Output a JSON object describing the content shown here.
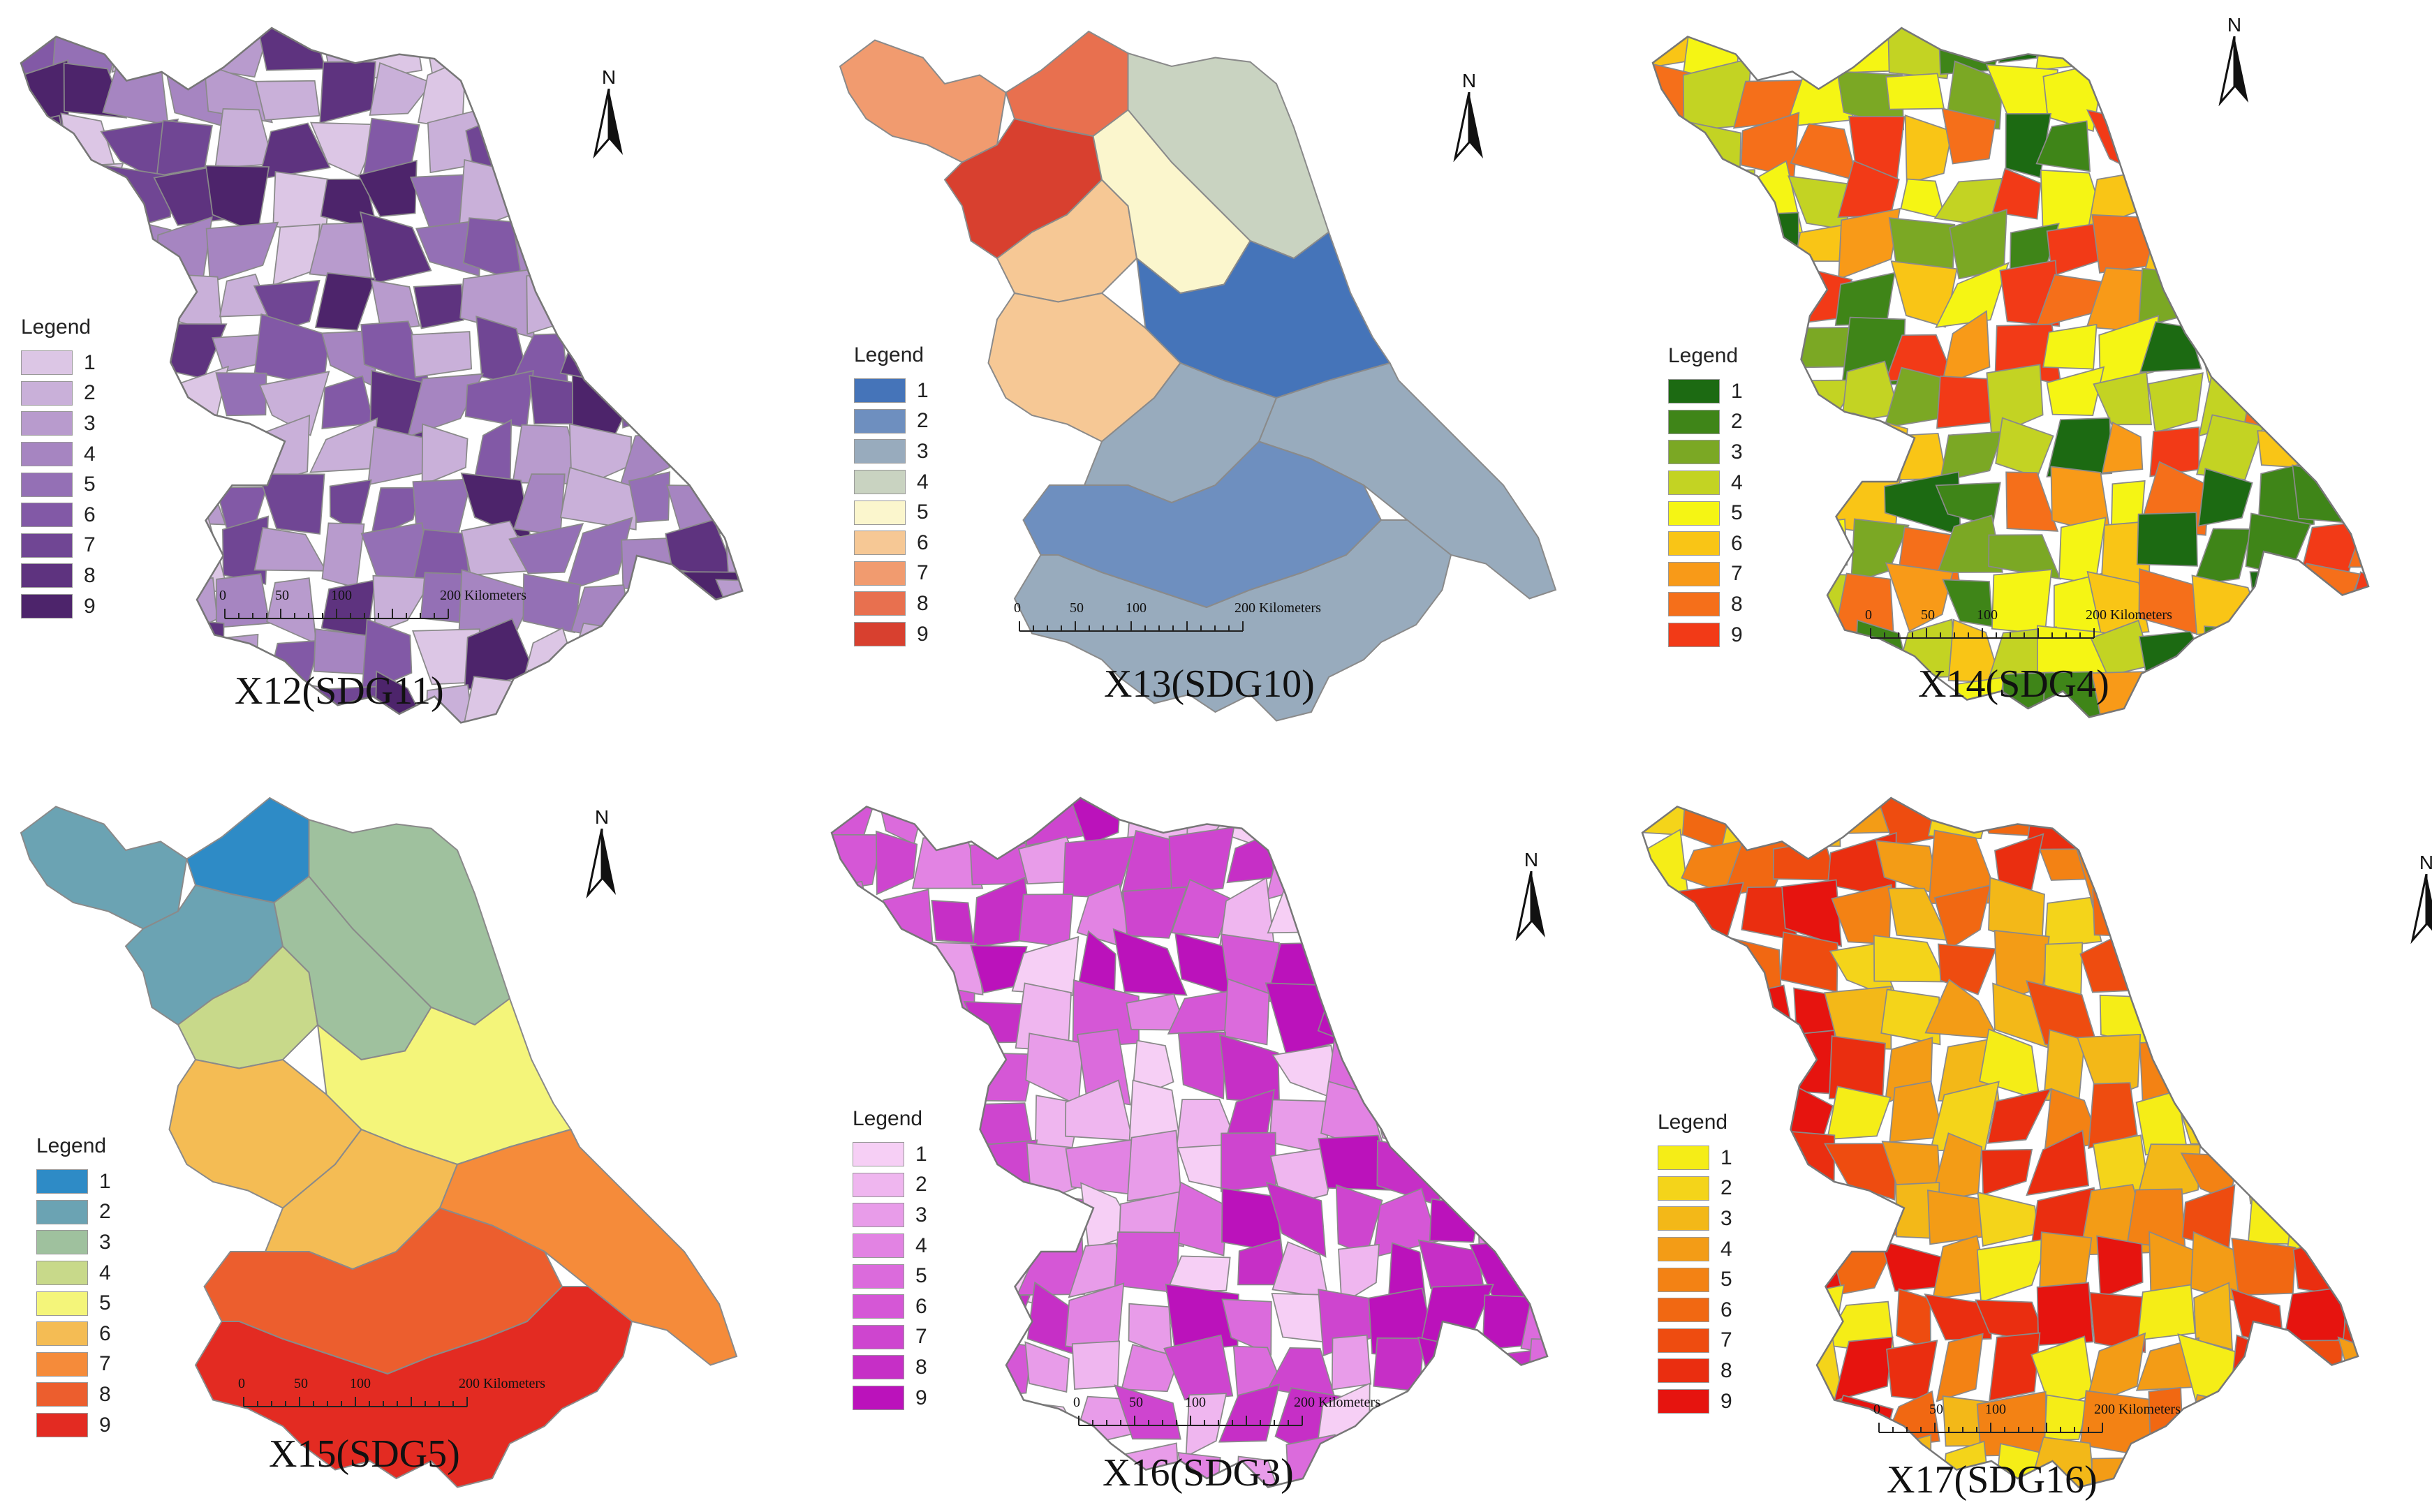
{
  "legend_title": "Legend",
  "north_label": "N",
  "scale": {
    "ticks": [
      "0",
      "50",
      "100"
    ],
    "end_label": "200 Kilometers"
  },
  "panels": [
    {
      "caption": "X12(SDG11)",
      "legend_labels": [
        "1",
        "2",
        "3",
        "4",
        "5",
        "6",
        "7",
        "8",
        "9"
      ],
      "colors": [
        "#dcc6e5",
        "#c9b0d9",
        "#b89bcd",
        "#a685c1",
        "#9470b5",
        "#8259a6",
        "#704694",
        "#5e337f",
        "#4d246b"
      ]
    },
    {
      "caption": "X13(SDG10)",
      "legend_labels": [
        "1",
        "2",
        "3",
        "4",
        "5",
        "6",
        "7",
        "8",
        "9"
      ],
      "colors": [
        "#4574b9",
        "#6e8fbf",
        "#98abbd",
        "#c9d3c1",
        "#fbf6cd",
        "#f6c895",
        "#f19b6f",
        "#e8704f",
        "#d8402f"
      ]
    },
    {
      "caption": "X14(SDG4)",
      "legend_labels": [
        "1",
        "2",
        "3",
        "4",
        "5",
        "6",
        "7",
        "8",
        "9"
      ],
      "colors": [
        "#1c6a12",
        "#3f8518",
        "#7ba824",
        "#c3d323",
        "#f5f514",
        "#f9c516",
        "#f89a18",
        "#f56f1a",
        "#f23a17"
      ]
    },
    {
      "caption": "X15(SDG5)",
      "legend_labels": [
        "1",
        "2",
        "3",
        "4",
        "5",
        "6",
        "7",
        "8",
        "9"
      ],
      "colors": [
        "#2e8bc6",
        "#6ba3b3",
        "#9fc19e",
        "#c8d98a",
        "#f4f57a",
        "#f4bc54",
        "#f58b3a",
        "#ec5e2e",
        "#e32b22"
      ]
    },
    {
      "caption": "X16(SDG3)",
      "legend_labels": [
        "1",
        "2",
        "3",
        "4",
        "5",
        "6",
        "7",
        "8",
        "9"
      ],
      "colors": [
        "#f6cff5",
        "#efb6ef",
        "#e89ce9",
        "#e283e3",
        "#db6bdc",
        "#d557d6",
        "#ce45cf",
        "#c62fc6",
        "#bb12bb"
      ]
    },
    {
      "caption": "X17(SDG16)",
      "legend_labels": [
        "1",
        "2",
        "3",
        "4",
        "5",
        "6",
        "7",
        "8",
        "9"
      ],
      "colors": [
        "#f5ed17",
        "#f4d41a",
        "#f3b818",
        "#f39c16",
        "#f38214",
        "#f16812",
        "#ee4c10",
        "#ea2e10",
        "#e6140f"
      ]
    }
  ]
}
